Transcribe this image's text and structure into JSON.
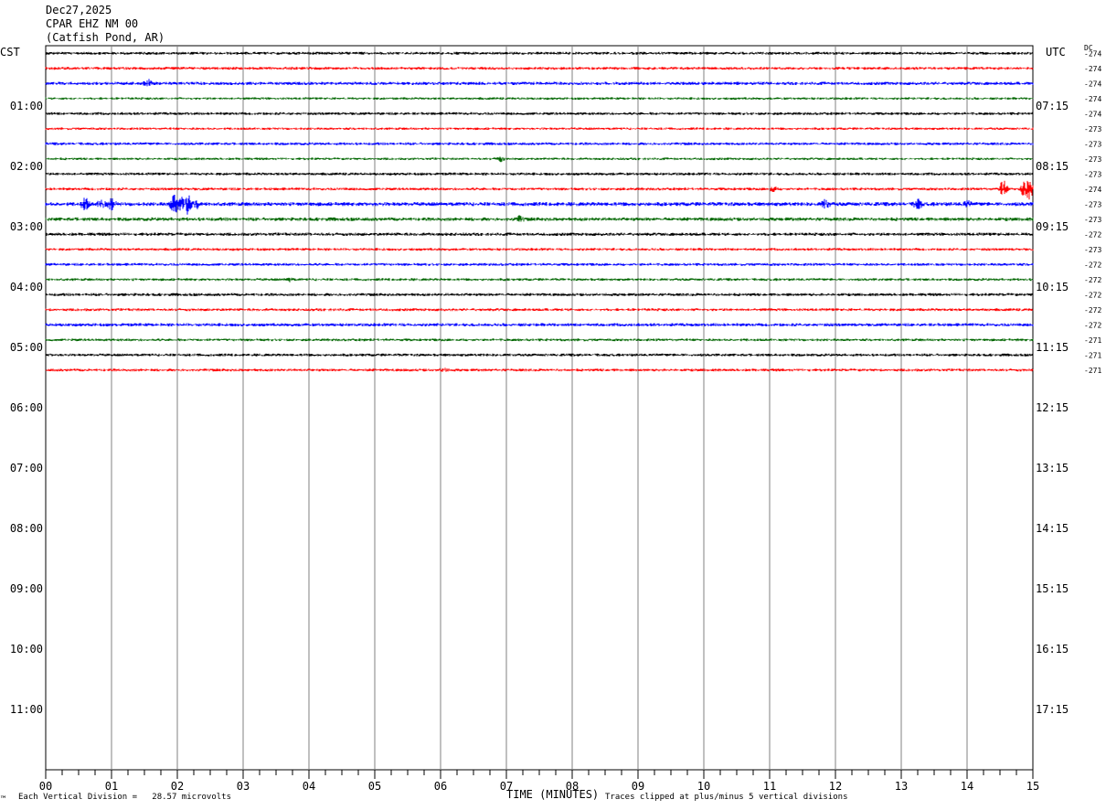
{
  "header": {
    "date": "Dec27,2025",
    "station": "CPAR EHZ NM 00",
    "location": "(Catfish Pond, AR)"
  },
  "left_zone": "CST",
  "right_zone": "UTC",
  "dc_label": "DC",
  "footer": {
    "division_note": "Each Vertical Division =   28.57 microvolts",
    "clip_note": "Traces clipped at plus/minus 5 vertical divisions",
    "corner_mark": "™"
  },
  "colors": {
    "trace_cycle": [
      "#000000",
      "#ff0000",
      "#0000ff",
      "#006600"
    ],
    "grid": "#808080"
  },
  "chart_data": {
    "type": "line",
    "xlabel": "TIME (MINUTES)",
    "xlim": [
      0,
      15
    ],
    "x_ticks": [
      "00",
      "01",
      "02",
      "03",
      "04",
      "05",
      "06",
      "07",
      "08",
      "09",
      "10",
      "11",
      "12",
      "13",
      "14",
      "15"
    ],
    "rows_total": 48,
    "rows_per_hour": 4,
    "left_hour_labels": [
      "01:00",
      "02:00",
      "03:00",
      "04:00",
      "05:00",
      "06:00",
      "07:00",
      "08:00",
      "09:00",
      "10:00",
      "11:00"
    ],
    "right_hour_labels": [
      "07:15",
      "08:15",
      "09:15",
      "10:15",
      "11:15",
      "12:15",
      "13:15",
      "14:15",
      "15:15",
      "16:15",
      "17:15"
    ],
    "dc_offsets": [
      "-274",
      "-274",
      "-274",
      "-274",
      "-274",
      "-273",
      "-273",
      "-273",
      "-273",
      "-274",
      "-273",
      "-273",
      "-272",
      "-273",
      "-272",
      "-272",
      "-272",
      "-272",
      "-272",
      "-271",
      "-271",
      "-271"
    ],
    "trace_amplitudes": [
      1.6,
      1.6,
      1.8,
      1.4,
      1.6,
      1.4,
      1.6,
      1.4,
      1.6,
      1.6,
      2.2,
      2.0,
      1.8,
      1.5,
      1.6,
      1.5,
      1.7,
      1.6,
      1.8,
      1.5,
      1.6,
      1.6
    ],
    "events": [
      {
        "row": 2,
        "minute": 1.55,
        "amp": 4
      },
      {
        "row": 7,
        "minute": 6.9,
        "amp": 3
      },
      {
        "row": 9,
        "minute": 11.05,
        "amp": 3
      },
      {
        "row": 9,
        "minute": 14.55,
        "amp": 10
      },
      {
        "row": 9,
        "minute": 14.85,
        "amp": 8
      },
      {
        "row": 9,
        "minute": 14.95,
        "amp": 12
      },
      {
        "row": 10,
        "minute": 0.6,
        "amp": 7
      },
      {
        "row": 10,
        "minute": 0.85,
        "amp": 5
      },
      {
        "row": 10,
        "minute": 1.0,
        "amp": 6
      },
      {
        "row": 10,
        "minute": 1.95,
        "amp": 11
      },
      {
        "row": 10,
        "minute": 2.05,
        "amp": 9
      },
      {
        "row": 10,
        "minute": 2.15,
        "amp": 12
      },
      {
        "row": 10,
        "minute": 2.3,
        "amp": 4
      },
      {
        "row": 10,
        "minute": 11.85,
        "amp": 5
      },
      {
        "row": 10,
        "minute": 13.25,
        "amp": 6
      },
      {
        "row": 10,
        "minute": 14.0,
        "amp": 3
      },
      {
        "row": 11,
        "minute": 7.2,
        "amp": 3
      },
      {
        "row": 15,
        "minute": 3.7,
        "amp": 2
      },
      {
        "row": 21,
        "minute": 6.05,
        "amp": 2
      }
    ]
  }
}
